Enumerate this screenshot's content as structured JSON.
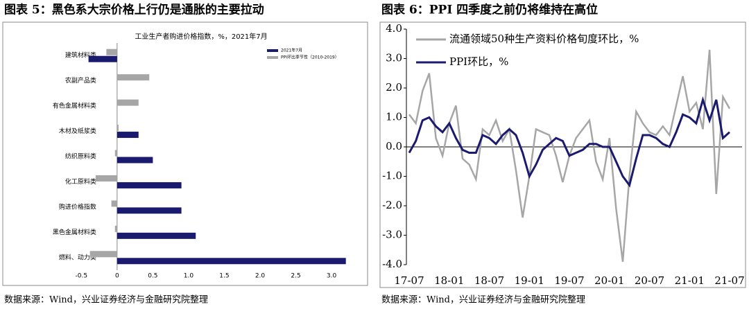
{
  "chart_data": [
    {
      "type": "barh",
      "header": "图表 5：黑色系大宗价格上行仍是通胀的主要拉动",
      "title": "工业生产者购进价格指数，%，2021年7月",
      "source": "数据来源：Wind，兴业证券经济与金融研究院整理",
      "categories": [
        "建筑材料类",
        "农副产品类",
        "有色金属材料类",
        "木材及纸浆类",
        "纺织原料类",
        "化工原料类",
        "购进价格指数",
        "黑色金属材料类",
        "燃料、动力类"
      ],
      "series": [
        {
          "name": "2021年7月",
          "color": "#1a1a6e",
          "values": [
            -0.4,
            0,
            0,
            0.3,
            0.5,
            0.9,
            0.9,
            1.1,
            3.2
          ]
        },
        {
          "name": "PPI环比季节性（2010-2019）",
          "color": "#a6a6a6",
          "values": [
            -0.15,
            0.45,
            0.3,
            0.02,
            -0.03,
            -0.3,
            -0.08,
            -0.03,
            -0.38
          ]
        }
      ],
      "xlim": [
        -0.6,
        3.3
      ],
      "xticks": [
        -0.5,
        0,
        0.5,
        {
          "value": 1,
          "label": "1.0"
        },
        1.5,
        {
          "value": 2,
          "label": "2.0"
        },
        2.5,
        {
          "value": 3,
          "label": "3.0"
        }
      ]
    },
    {
      "type": "line",
      "header": "图表 6：PPI 四季度之前仍将维持在高位",
      "source": "数据来源：Wind，兴业证券经济与金融研究院整理",
      "categories": [
        "17-07",
        null,
        null,
        null,
        null,
        null,
        "18-01",
        null,
        null,
        null,
        null,
        null,
        "18-07",
        null,
        null,
        null,
        null,
        null,
        "19-01",
        null,
        null,
        null,
        null,
        null,
        "19-07",
        null,
        null,
        null,
        null,
        null,
        "20-01",
        null,
        null,
        null,
        null,
        null,
        "20-07",
        null,
        null,
        null,
        null,
        null,
        "21-01",
        null,
        null,
        null,
        null,
        null,
        "21-07"
      ],
      "series": [
        {
          "name": "流通领域50种生产资料价格旬度环比，%",
          "color": "#a6a6a6",
          "values": [
            1.1,
            0.8,
            1.9,
            2.5,
            0.3,
            -0.3,
            0.8,
            1.4,
            -0.4,
            -0.6,
            -1.1,
            0.6,
            0.4,
            0.9,
            0.2,
            0.6,
            -0.8,
            -2.4,
            -1.0,
            0.6,
            0.5,
            0.4,
            -0.3,
            -1.2,
            -0.3,
            0.3,
            0.6,
            0.9,
            -0.5,
            -1.1,
            0.3,
            -2.1,
            -3.9,
            -1.0,
            1.2,
            0.8,
            0.5,
            0.4,
            0.7,
            0.4,
            1.4,
            2.4,
            1.2,
            1.5,
            0.6,
            3.3,
            -1.6,
            1.7,
            1.3
          ]
        },
        {
          "name": "PPI环比，%",
          "color": "#1a1a6e",
          "values": [
            -0.2,
            0.2,
            0.9,
            1.0,
            0.7,
            0.5,
            0.8,
            0.3,
            -0.1,
            -0.2,
            -0.2,
            0.4,
            0.3,
            0.1,
            0.4,
            0.6,
            0.4,
            -0.2,
            -1.0,
            -0.6,
            -0.1,
            0.1,
            0.3,
            0.2,
            -0.3,
            -0.2,
            -0.1,
            0.1,
            0.1,
            0.0,
            0.0,
            -0.5,
            -1.0,
            -1.3,
            -0.4,
            0.4,
            0.4,
            0.3,
            0.1,
            0.0,
            0.5,
            1.1,
            1.0,
            0.8,
            1.6,
            0.9,
            1.6,
            0.3,
            0.5
          ]
        }
      ],
      "ylim": [
        -4,
        4
      ],
      "yticks": [
        {
          "value": -4,
          "label": "-4.0"
        },
        {
          "value": -3,
          "label": "-3.0"
        },
        {
          "value": -2,
          "label": "-2.0"
        },
        {
          "value": -1,
          "label": "-1.0"
        },
        {
          "value": 0,
          "label": "0.0"
        },
        {
          "value": 1,
          "label": "1.0"
        },
        {
          "value": 2,
          "label": "2.0"
        },
        {
          "value": 3,
          "label": "3.0"
        },
        {
          "value": 4,
          "label": "4.0"
        }
      ]
    }
  ]
}
